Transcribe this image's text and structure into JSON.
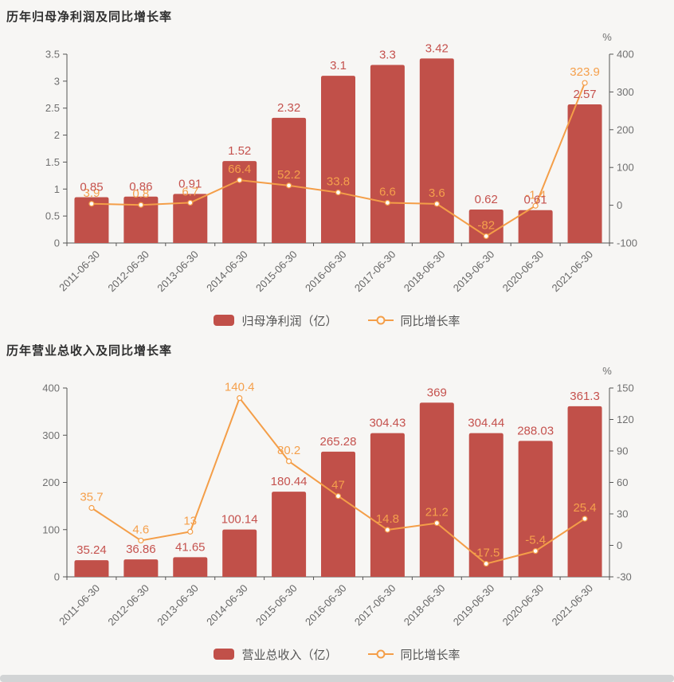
{
  "colors": {
    "bar": "#c15049",
    "barLabel": "#c5524e",
    "line": "#f49e48",
    "lineLabel": "#f5a04c",
    "axis": "#555555",
    "tick": "#707070",
    "title": "#2f2f2f",
    "legendText": "#555555",
    "background": "#f7f6f4",
    "bottomStrip": "#d2d4d5"
  },
  "chart_data": [
    {
      "type": "bar+line",
      "title": "历年归母净利润及同比增长率",
      "categories": [
        "2011-06-30",
        "2012-06-30",
        "2013-06-30",
        "2014-06-30",
        "2015-06-30",
        "2016-06-30",
        "2017-06-30",
        "2018-06-30",
        "2019-06-30",
        "2020-06-30",
        "2021-06-30"
      ],
      "series": [
        {
          "name": "归母净利润（亿）",
          "type": "bar",
          "axis": "left",
          "values": [
            0.85,
            0.86,
            0.91,
            1.52,
            2.32,
            3.1,
            3.3,
            3.42,
            0.62,
            0.61,
            2.57
          ]
        },
        {
          "name": "同比增长率",
          "type": "line",
          "axis": "right",
          "values": [
            3.9,
            0.8,
            6.7,
            66.4,
            52.2,
            33.8,
            6.6,
            3.6,
            -82,
            -1.4,
            323.9
          ]
        }
      ],
      "left_axis": {
        "min": 0,
        "max": 3.5,
        "ticks": [
          "0",
          "0.5",
          "1",
          "1.5",
          "2",
          "2.5",
          "3",
          "3.5"
        ]
      },
      "right_axis": {
        "min": -100,
        "max": 400,
        "unit": "%",
        "ticks": [
          "-100",
          "0",
          "100",
          "200",
          "300",
          "400"
        ]
      },
      "legend_position": "bottom",
      "grid": false
    },
    {
      "type": "bar+line",
      "title": "历年营业总收入及同比增长率",
      "categories": [
        "2011-06-30",
        "2012-06-30",
        "2013-06-30",
        "2014-06-30",
        "2015-06-30",
        "2016-06-30",
        "2017-06-30",
        "2018-06-30",
        "2019-06-30",
        "2020-06-30",
        "2021-06-30"
      ],
      "series": [
        {
          "name": "营业总收入（亿）",
          "type": "bar",
          "axis": "left",
          "values": [
            35.24,
            36.86,
            41.65,
            100.14,
            180.44,
            265.28,
            304.43,
            369,
            304.44,
            288.03,
            361.3
          ]
        },
        {
          "name": "同比增长率",
          "type": "line",
          "axis": "right",
          "values": [
            35.7,
            4.6,
            13,
            140.4,
            80.2,
            47,
            14.8,
            21.2,
            -17.5,
            -5.4,
            25.4
          ]
        }
      ],
      "left_axis": {
        "min": 0,
        "max": 400,
        "ticks": [
          "0",
          "100",
          "200",
          "300",
          "400"
        ]
      },
      "right_axis": {
        "min": -30,
        "max": 150,
        "unit": "%",
        "ticks": [
          "-30",
          "0",
          "30",
          "60",
          "90",
          "120",
          "150"
        ]
      },
      "legend_position": "bottom",
      "grid": false
    }
  ]
}
